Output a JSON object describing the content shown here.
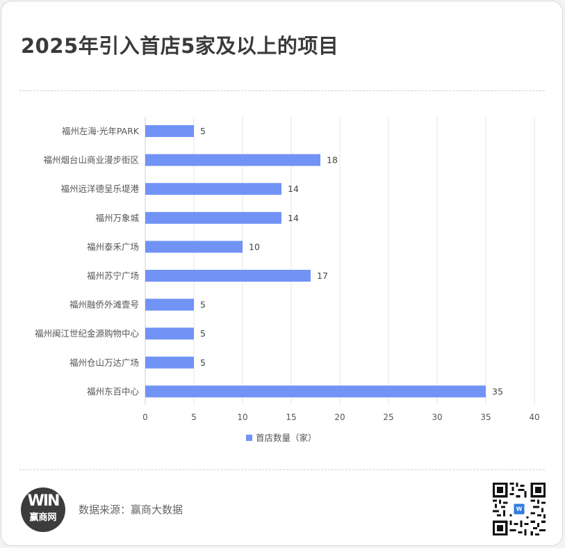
{
  "title": "2025年引入首店5家及以上的项目",
  "chart_data": {
    "type": "bar",
    "orientation": "horizontal",
    "categories": [
      "福州左海·光年PARK",
      "福州烟台山商业漫步街区",
      "福州远洋德呈乐堤港",
      "福州万象城",
      "福州泰禾广场",
      "福州苏宁广场",
      "福州融侨外滩壹号",
      "福州闽江世纪金源购物中心",
      "福州仓山万达广场",
      "福州东百中心"
    ],
    "series": [
      {
        "name": "首店数量（家）",
        "values": [
          5,
          18,
          14,
          14,
          10,
          17,
          5,
          5,
          5,
          35
        ],
        "color": "#7193f6"
      }
    ],
    "xlim": [
      0,
      40
    ],
    "xticks": [
      0,
      5,
      10,
      15,
      20,
      25,
      30,
      35,
      40
    ],
    "grid": "vertical",
    "legend": "bottom",
    "data_labels": true
  },
  "footer": {
    "source": "数据来源：赢商大数据",
    "logo_mark": "WIN",
    "logo_text": "赢商网"
  }
}
